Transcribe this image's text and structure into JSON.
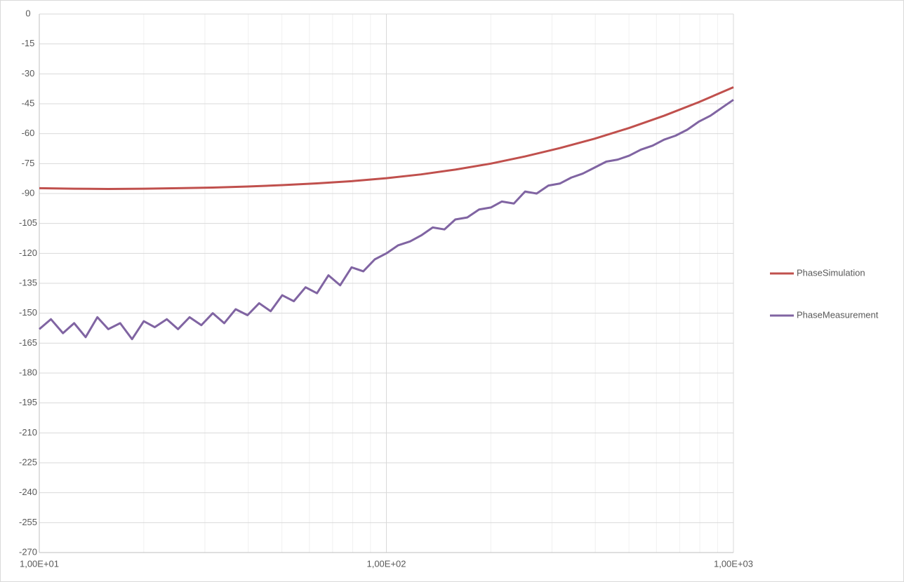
{
  "chart_data": {
    "type": "line",
    "xscale": "log",
    "grid": true,
    "legend": "right",
    "xlim": [
      10,
      1000
    ],
    "xticks": [
      {
        "value": 10,
        "label": "1,00E+01"
      },
      {
        "value": 100,
        "label": "1,00E+02"
      },
      {
        "value": 1000,
        "label": "1,00E+03"
      }
    ],
    "xminorticks": [
      20,
      30,
      40,
      50,
      60,
      70,
      80,
      90,
      200,
      300,
      400,
      500,
      600,
      700,
      800,
      900
    ],
    "ylim": [
      -270,
      0
    ],
    "yticks": [
      0,
      -15,
      -30,
      -45,
      -60,
      -75,
      -90,
      -105,
      -120,
      -135,
      -150,
      -165,
      -180,
      -195,
      -210,
      -225,
      -240,
      -255,
      -270
    ],
    "series": [
      {
        "name": "PhaseSimulation",
        "color": "#c0504d",
        "x": [
          10,
          12.6,
          15.8,
          20,
          25.1,
          31.6,
          39.8,
          50.1,
          63.1,
          79.4,
          100,
          126,
          158,
          200,
          251,
          316,
          398,
          501,
          631,
          794,
          1000
        ],
        "values": [
          -87.3,
          -87.6,
          -87.7,
          -87.6,
          -87.3,
          -87.0,
          -86.5,
          -85.8,
          -84.9,
          -83.8,
          -82.3,
          -80.4,
          -78.0,
          -75.0,
          -71.4,
          -67.2,
          -62.5,
          -57.1,
          -51.0,
          -44.2,
          -36.7
        ]
      },
      {
        "name": "PhaseMeasurement",
        "color": "#8064a2",
        "x": [
          10,
          10.8,
          11.7,
          12.6,
          13.6,
          14.7,
          15.8,
          17.1,
          18.5,
          20.0,
          21.5,
          23.3,
          25.1,
          27.1,
          29.3,
          31.6,
          34.1,
          36.8,
          39.8,
          43.0,
          46.4,
          50.1,
          54.1,
          58.5,
          63.1,
          68.1,
          73.6,
          79.4,
          85.8,
          92.6,
          100,
          108,
          117,
          126,
          136,
          147,
          158,
          171,
          185,
          200,
          215,
          233,
          251,
          271,
          293,
          316,
          341,
          368,
          398,
          430,
          464,
          501,
          541,
          585,
          631,
          681,
          736,
          794,
          858,
          926,
          1000
        ],
        "values": [
          -158,
          -153,
          -160,
          -155,
          -162,
          -152,
          -158,
          -155,
          -163,
          -154,
          -157,
          -153,
          -158,
          -152,
          -156,
          -150,
          -155,
          -148,
          -151,
          -145,
          -149,
          -141,
          -144,
          -137,
          -140,
          -131,
          -136,
          -127,
          -129,
          -123,
          -120,
          -116,
          -114,
          -111,
          -107,
          -108,
          -103,
          -102,
          -98,
          -97,
          -94,
          -95,
          -89,
          -90,
          -86,
          -85,
          -82,
          -80,
          -77,
          -74,
          -73,
          -71,
          -68,
          -66,
          -63,
          -61,
          -58,
          -54,
          -51,
          -47,
          -43
        ]
      }
    ]
  }
}
